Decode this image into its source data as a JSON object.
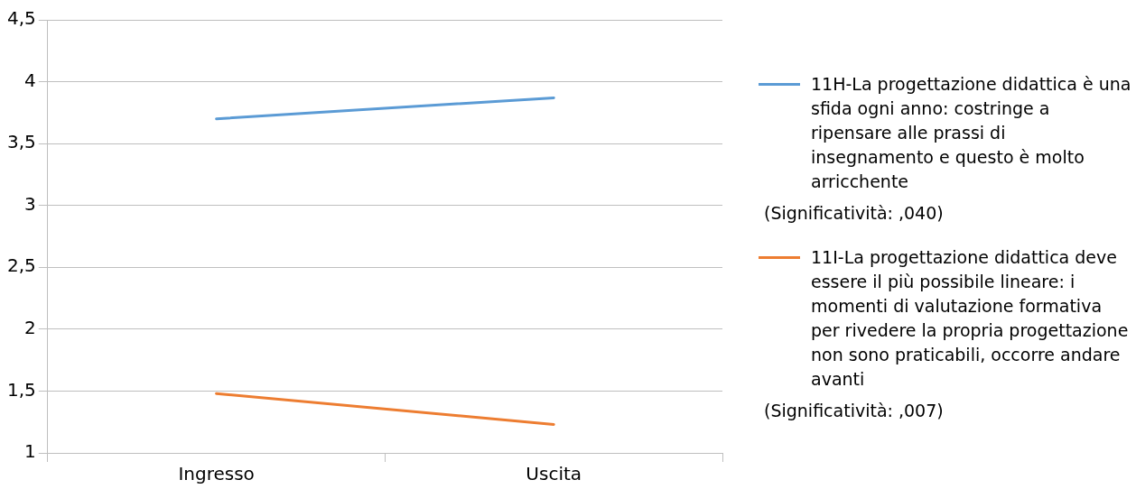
{
  "chart_data": {
    "type": "line",
    "categories": [
      "Ingresso",
      "Uscita"
    ],
    "series": [
      {
        "name": "11H-La progettazione didattica è una sfida ogni anno: costringe a ripensare alle prassi di insegnamento e questo è molto arricchente",
        "color": "#5b9bd5",
        "values": [
          3.7,
          3.87
        ]
      },
      {
        "name": "11I-La progettazione didattica deve essere il più possibile lineare: i momenti di valutazione formativa per rivedere la propria progettazione non sono praticabili, occorre andare avanti",
        "color": "#ed7d31",
        "values": [
          1.48,
          1.23
        ]
      }
    ],
    "annotations": [
      "(Significatività:  ,040)",
      "(Significatività:  ,007)"
    ],
    "ylim": [
      1,
      4.5
    ],
    "yticks": [
      {
        "value": 1,
        "label": "1"
      },
      {
        "value": 1.5,
        "label": "1,5"
      },
      {
        "value": 2,
        "label": "2"
      },
      {
        "value": 2.5,
        "label": "2,5"
      },
      {
        "value": 3,
        "label": "3"
      },
      {
        "value": 3.5,
        "label": "3,5"
      },
      {
        "value": 4,
        "label": "4"
      },
      {
        "value": 4.5,
        "label": "4,5"
      }
    ],
    "grid": "y",
    "legend": "right",
    "marker": "none",
    "line_style": "solid"
  }
}
